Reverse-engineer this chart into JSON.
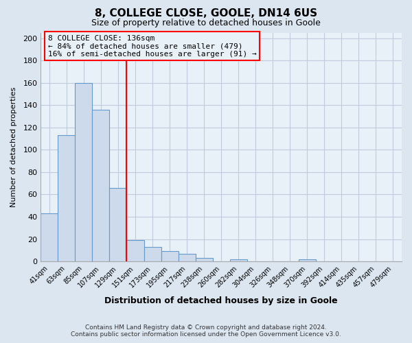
{
  "title": "8, COLLEGE CLOSE, GOOLE, DN14 6US",
  "subtitle": "Size of property relative to detached houses in Goole",
  "xlabel": "Distribution of detached houses by size in Goole",
  "ylabel": "Number of detached properties",
  "bar_labels": [
    "41sqm",
    "63sqm",
    "85sqm",
    "107sqm",
    "129sqm",
    "151sqm",
    "173sqm",
    "195sqm",
    "217sqm",
    "238sqm",
    "260sqm",
    "282sqm",
    "304sqm",
    "326sqm",
    "348sqm",
    "370sqm",
    "392sqm",
    "414sqm",
    "435sqm",
    "457sqm",
    "479sqm"
  ],
  "bar_values": [
    43,
    113,
    160,
    136,
    66,
    19,
    13,
    9,
    7,
    3,
    0,
    2,
    0,
    0,
    0,
    2,
    0,
    0,
    0,
    0,
    0
  ],
  "bar_color": "#ccdaeb",
  "bar_edge_color": "#6699cc",
  "vline_x_index": 4.5,
  "vline_color": "red",
  "annotation_title": "8 COLLEGE CLOSE: 136sqm",
  "annotation_line1": "← 84% of detached houses are smaller (479)",
  "annotation_line2": "16% of semi-detached houses are larger (91) →",
  "annotation_box_color": "red",
  "ylim": [
    0,
    205
  ],
  "yticks": [
    0,
    20,
    40,
    60,
    80,
    100,
    120,
    140,
    160,
    180,
    200
  ],
  "grid_color": "#c0ccdd",
  "background_color": "#dce6f0",
  "plot_bg_color": "#e8f0f8",
  "footer_line1": "Contains HM Land Registry data © Crown copyright and database right 2024.",
  "footer_line2": "Contains public sector information licensed under the Open Government Licence v3.0."
}
